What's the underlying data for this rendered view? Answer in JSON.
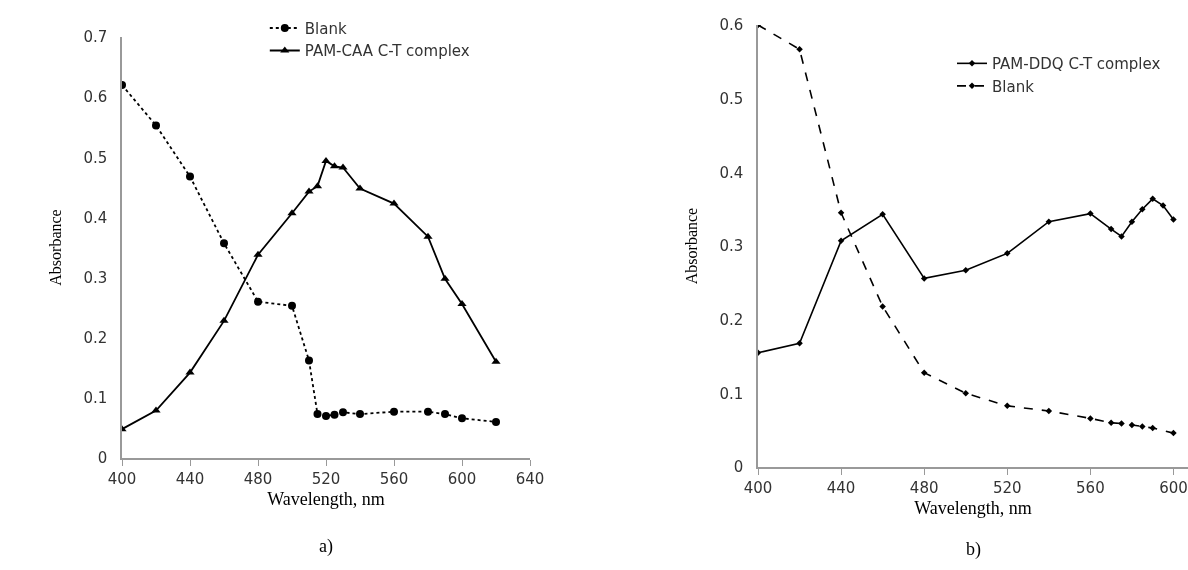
{
  "chart_data": [
    {
      "type": "line",
      "xlabel": "Wavelength, nm",
      "ylabel": "Absorbance",
      "annotations": [
        "a)"
      ],
      "x": [
        400,
        420,
        440,
        460,
        480,
        500,
        510,
        515,
        520,
        525,
        530,
        540,
        560,
        580,
        590,
        600,
        620
      ],
      "series": [
        {
          "name": "Blank",
          "color": "#000000",
          "line_style": "dotted",
          "marker": "circle",
          "values": [
            0.62,
            0.553,
            0.468,
            0.357,
            0.26,
            0.253,
            0.162,
            0.073,
            0.07,
            0.072,
            0.076,
            0.073,
            0.077,
            0.077,
            0.073,
            0.066,
            0.06
          ]
        },
        {
          "name": "PAM-CAA C-T complex",
          "color": "#000000",
          "line_style": "solid",
          "marker": "triangle",
          "values": [
            0.048,
            0.079,
            0.142,
            0.228,
            0.338,
            0.407,
            0.443,
            0.452,
            0.494,
            0.485,
            0.483,
            0.448,
            0.423,
            0.368,
            0.298,
            0.256,
            0.16
          ]
        }
      ],
      "xlim": [
        400,
        640
      ],
      "xticks": [
        400,
        440,
        480,
        520,
        560,
        600,
        640
      ],
      "ylim": [
        0,
        0.7
      ],
      "yticks": [
        0,
        0.1,
        0.2,
        0.3,
        0.4,
        0.5,
        0.6,
        0.7
      ],
      "grid": false,
      "legend": "top"
    },
    {
      "type": "line",
      "xlabel": "Wavelength, nm",
      "ylabel": "Absorbance",
      "annotations": [
        "b)"
      ],
      "series": [
        {
          "name": "PAM-DDQ C-T complex",
          "color": "#000000",
          "line_style": "solid",
          "marker": "diamond",
          "x": [
            400,
            420,
            440,
            460,
            480,
            500,
            520,
            540,
            560,
            570,
            575,
            580,
            585,
            590,
            595,
            600
          ],
          "values": [
            0.155,
            0.168,
            0.307,
            0.343,
            0.256,
            0.267,
            0.29,
            0.333,
            0.344,
            0.323,
            0.313,
            0.333,
            0.35,
            0.364,
            0.355,
            0.336
          ]
        },
        {
          "name": "Blank",
          "color": "#000000",
          "line_style": "dashed",
          "marker": "diamond",
          "x": [
            400,
            420,
            440,
            460,
            480,
            500,
            520,
            540,
            560,
            570,
            575,
            580,
            585,
            590,
            600
          ],
          "values": [
            0.6,
            0.567,
            0.345,
            0.218,
            0.128,
            0.1,
            0.083,
            0.076,
            0.066,
            0.06,
            0.059,
            0.057,
            0.055,
            0.053,
            0.046
          ]
        }
      ],
      "xlim": [
        400,
        607
      ],
      "xticks": [
        400,
        440,
        480,
        520,
        560,
        600
      ],
      "ylim": [
        0,
        0.6
      ],
      "yticks": [
        0,
        0.1,
        0.2,
        0.3,
        0.4,
        0.5,
        0.6
      ],
      "grid": false,
      "legend": "top right"
    }
  ]
}
